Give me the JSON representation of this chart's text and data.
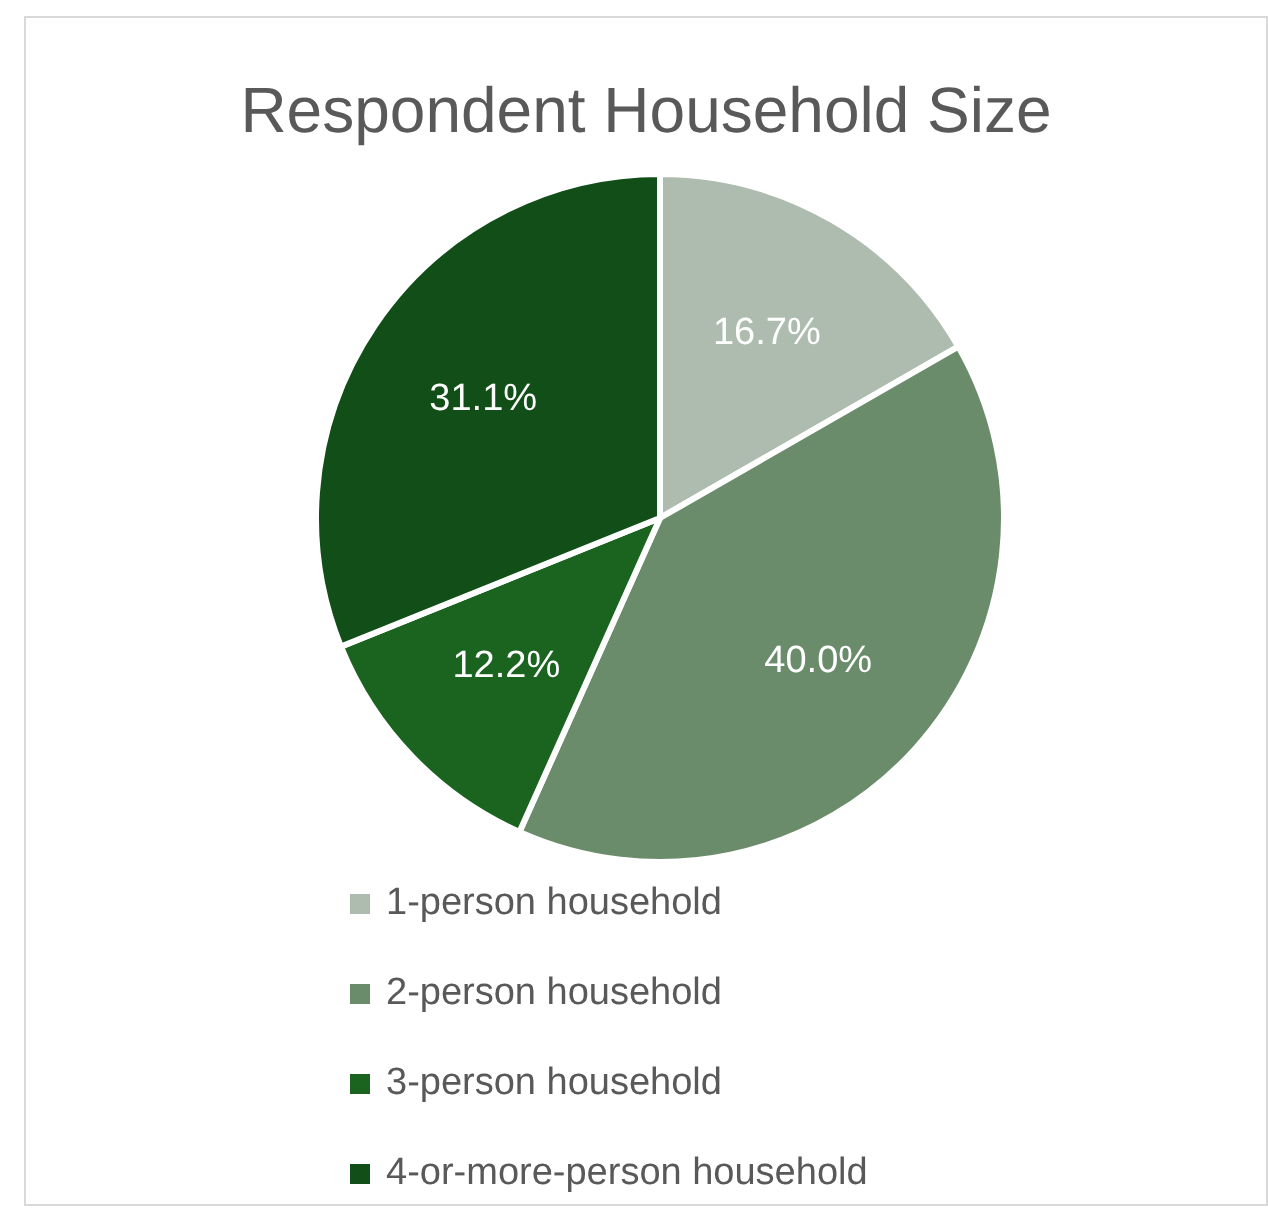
{
  "chart_data": {
    "type": "pie",
    "title": "Respondent Household Size",
    "categories": [
      "1-person household",
      "2-person household",
      "3-person household",
      "4-or-more-person household"
    ],
    "values": [
      16.7,
      40.0,
      12.2,
      31.1
    ],
    "value_labels": [
      "16.7%",
      "40.0%",
      "12.2%",
      "31.1%"
    ],
    "colors": [
      "#adbcae",
      "#6a8c6b",
      "#1a6420",
      "#124f18"
    ],
    "legend": "bottom"
  }
}
